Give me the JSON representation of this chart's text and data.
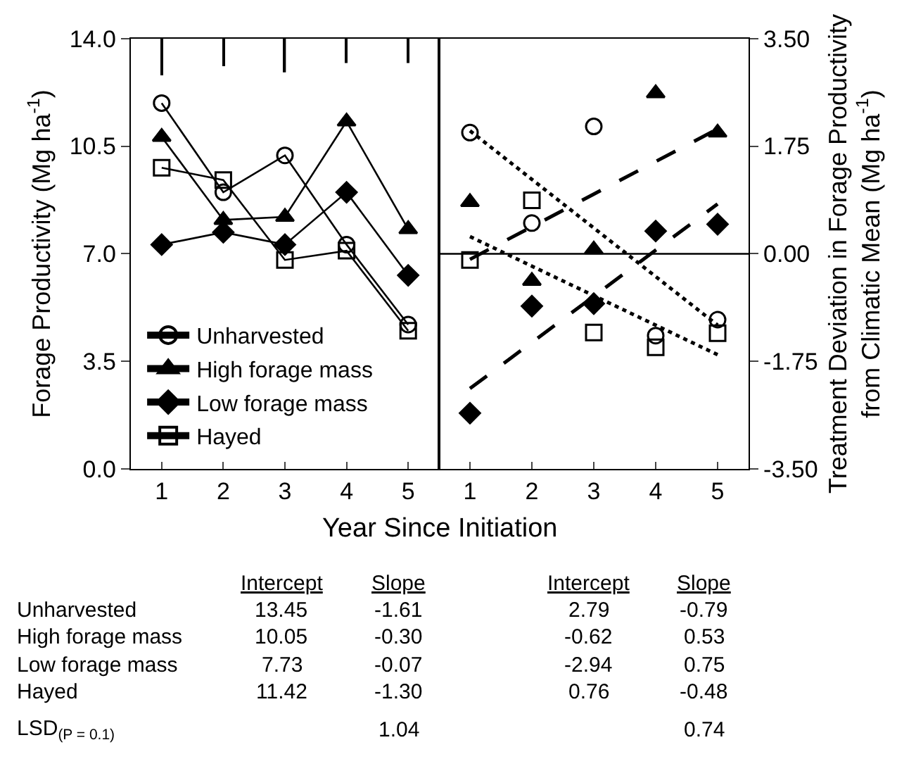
{
  "chart_data": [
    {
      "type": "line",
      "ylabel": "Forage Productivity (Mg ha$^{-1}$)",
      "xlabel": "Year Since Initiation",
      "x": [
        1,
        2,
        3,
        4,
        5
      ],
      "xlim": [
        0.5,
        5.5
      ],
      "xticks": [
        1,
        2,
        3,
        4,
        5
      ],
      "ylim": [
        0,
        14
      ],
      "yticks": [
        {
          "value": 0,
          "label": "0.0"
        },
        {
          "value": 3.5,
          "label": "3.5"
        },
        {
          "value": 7,
          "label": "7.0"
        },
        {
          "value": 10.5,
          "label": "10.5"
        },
        {
          "value": 14,
          "label": "14.0"
        }
      ],
      "grid": false,
      "legend": "bottom left",
      "series": [
        {
          "name": "Unharvested",
          "color": "#000000",
          "marker": "circle-open",
          "values": [
            11.9,
            9.0,
            10.2,
            7.3,
            4.7
          ]
        },
        {
          "name": "High forage mass",
          "color": "#000000",
          "marker": "triangle",
          "values": [
            10.8,
            8.1,
            8.2,
            11.3,
            7.8
          ]
        },
        {
          "name": "Low forage mass",
          "color": "#000000",
          "marker": "diamond",
          "values": [
            7.3,
            7.7,
            7.3,
            9.0,
            6.3
          ]
        },
        {
          "name": "Hayed",
          "color": "#000000",
          "marker": "square-open",
          "values": [
            9.8,
            9.4,
            6.8,
            7.1,
            4.5
          ]
        },
        {
          "type": "bar",
          "color": "#000000",
          "base": [
            12.8,
            13.1,
            12.9,
            13.2,
            13.2
          ],
          "values": [
            1.2,
            0.9,
            1.1,
            0.8,
            0.8
          ]
        }
      ],
      "annotations": [
        "Intercept",
        "Slope",
        "Intercept",
        "Slope",
        "Unharvested",
        "13.45",
        "-1.61",
        "2.79",
        "-0.79",
        "High forage mass",
        "10.05",
        "-0.30",
        "-0.62",
        "0.53",
        "Low forage mass",
        "7.73",
        "-0.07",
        "-2.94",
        "0.75",
        "Hayed",
        "11.42",
        "-1.30",
        "0.76",
        "-0.48",
        "LSD$_{(P = 0.1)}$",
        "1.04",
        "0.74"
      ]
    },
    {
      "type": "scatter",
      "ylabel": "Treatment Deviation in Forage Productivity\nfrom Climatic Mean (Mg ha$^{-1}$)",
      "x": [
        1,
        2,
        3,
        4,
        5
      ],
      "xlim": [
        0.5,
        5.5
      ],
      "xticks": [
        1,
        2,
        3,
        4,
        5
      ],
      "ylim": [
        -3.5,
        3.5
      ],
      "yticks": [
        {
          "value": -3.5,
          "label": "-3.50"
        },
        {
          "value": -1.75,
          "label": "-1.75"
        },
        {
          "value": 0,
          "label": "0.00"
        },
        {
          "value": 1.75,
          "label": "1.75"
        },
        {
          "value": 3.5,
          "label": "3.50"
        }
      ],
      "grid": false,
      "legend": false,
      "ref_lines": [
        {
          "axis": "y",
          "value": 0,
          "color": "#000000"
        }
      ],
      "series": [
        {
          "color": "#000000",
          "marker": "circle-open",
          "values": [
            1.97,
            0.5,
            2.07,
            -1.33,
            -1.07
          ]
        },
        {
          "color": "#000000",
          "marker": "triangle",
          "values": [
            0.84,
            -0.44,
            0.07,
            2.61,
            1.97
          ]
        },
        {
          "color": "#000000",
          "marker": "diamond",
          "values": [
            -2.59,
            -0.85,
            -0.81,
            0.37,
            0.48
          ]
        },
        {
          "color": "#000000",
          "marker": "square-open",
          "values": [
            -0.1,
            0.87,
            -1.28,
            -1.52,
            -1.29
          ]
        },
        {
          "type": "line",
          "color": "#000000",
          "marker": "none",
          "line_style": "dotted",
          "values": [
            2.0,
            1.21,
            0.42,
            -0.37,
            -1.16
          ]
        },
        {
          "type": "line",
          "color": "#000000",
          "marker": "none",
          "line_style": "dashed",
          "values": [
            -0.09,
            0.44,
            0.97,
            1.5,
            2.03
          ]
        },
        {
          "type": "line",
          "color": "#000000",
          "marker": "none",
          "line_style": "dashed",
          "values": [
            -2.19,
            -1.44,
            -0.69,
            0.06,
            0.81
          ]
        },
        {
          "type": "line",
          "color": "#000000",
          "marker": "none",
          "line_style": "dotted",
          "values": [
            0.28,
            -0.2,
            -0.68,
            -1.16,
            -1.64
          ]
        }
      ]
    }
  ]
}
